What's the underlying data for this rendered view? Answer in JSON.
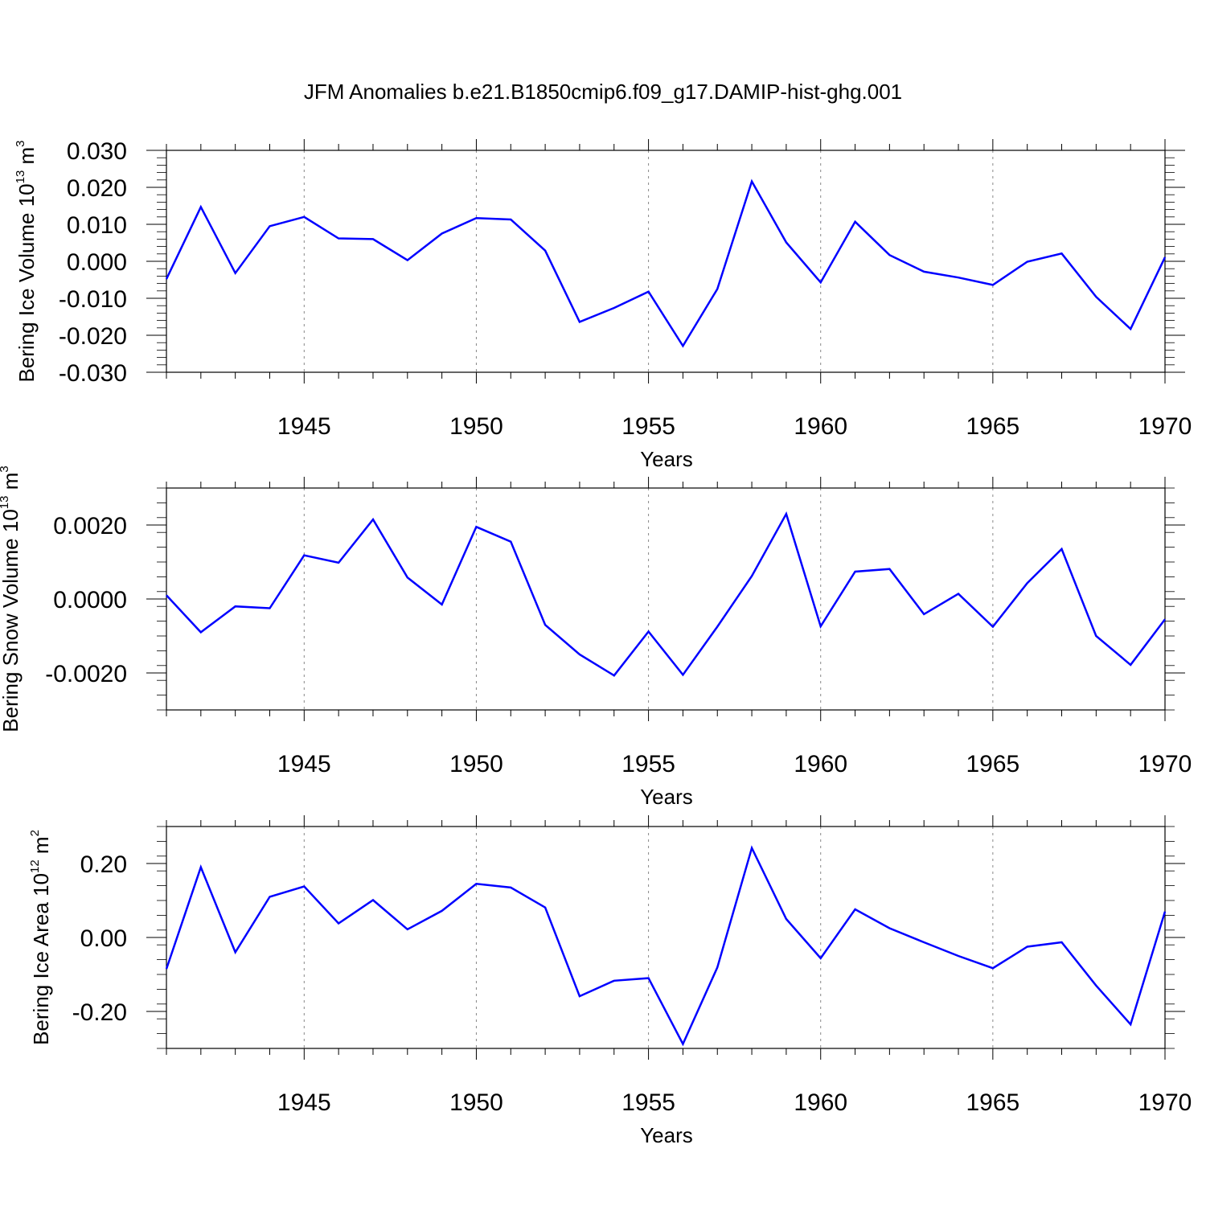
{
  "title": "JFM Anomalies b.e21.B1850cmip6.f09_g17.DAMIP-hist-ghg.001",
  "line_color": "#0000ff",
  "chart_data": [
    {
      "type": "line",
      "ylabel": "Bering Ice Volume 10",
      "ylabel_exp": "13",
      "ylabel_unit": " m",
      "ylabel_unit_exp": "3",
      "xlabel": "Years",
      "xlim": [
        1941,
        1970
      ],
      "ylim": [
        -0.03,
        0.03
      ],
      "xticks": [
        1945,
        1950,
        1955,
        1960,
        1965,
        1970
      ],
      "yticks": [
        -0.03,
        -0.02,
        -0.01,
        0.0,
        0.01,
        0.02,
        0.03
      ],
      "ytick_labels": [
        "-0.030",
        "-0.020",
        "-0.010",
        "0.000",
        "0.010",
        "0.020",
        "0.030"
      ],
      "grid": "vertical-dashed",
      "x": [
        1941,
        1942,
        1943,
        1944,
        1945,
        1946,
        1947,
        1948,
        1949,
        1950,
        1951,
        1952,
        1953,
        1954,
        1955,
        1956,
        1957,
        1958,
        1959,
        1960,
        1961,
        1962,
        1963,
        1964,
        1965,
        1966,
        1967,
        1968,
        1969,
        1970
      ],
      "values": [
        -0.0048,
        0.0147,
        -0.0032,
        0.0095,
        0.012,
        0.0062,
        0.006,
        0.0003,
        0.0075,
        0.0117,
        0.0113,
        0.0029,
        -0.0164,
        -0.0126,
        -0.0082,
        -0.0229,
        -0.0075,
        0.0216,
        0.0051,
        -0.0057,
        0.0107,
        0.0017,
        -0.0028,
        -0.0044,
        -0.0064,
        -0.0001,
        0.0021,
        -0.0096,
        -0.0183,
        0.0011
      ]
    },
    {
      "type": "line",
      "ylabel": "Bering Snow Volume 10",
      "ylabel_exp": "13",
      "ylabel_unit": " m",
      "ylabel_unit_exp": "3",
      "xlabel": "Years",
      "xlim": [
        1941,
        1970
      ],
      "ylim": [
        -0.003,
        0.003
      ],
      "xticks": [
        1945,
        1950,
        1955,
        1960,
        1965,
        1970
      ],
      "yticks": [
        -0.002,
        0.0,
        0.002
      ],
      "ytick_labels": [
        "-0.0020",
        "0.0000",
        "0.0020"
      ],
      "grid": "vertical-dashed",
      "x": [
        1941,
        1942,
        1943,
        1944,
        1945,
        1946,
        1947,
        1948,
        1949,
        1950,
        1951,
        1952,
        1953,
        1954,
        1955,
        1956,
        1957,
        1958,
        1959,
        1960,
        1961,
        1962,
        1963,
        1964,
        1965,
        1966,
        1967,
        1968,
        1969,
        1970
      ],
      "values": [
        0.0001,
        -0.0009,
        -0.0002,
        -0.00025,
        0.00118,
        0.00098,
        0.00215,
        0.00058,
        -0.00015,
        0.00195,
        0.00155,
        -0.0007,
        -0.0015,
        -0.00207,
        -0.00088,
        -0.00205,
        -0.00075,
        0.00062,
        0.0023,
        -0.00074,
        0.00074,
        0.00081,
        -0.00041,
        0.00014,
        -0.00075,
        0.00043,
        0.00135,
        -0.001,
        -0.00178,
        -0.00055
      ]
    },
    {
      "type": "line",
      "ylabel": "Bering Ice Area 10",
      "ylabel_exp": "12",
      "ylabel_unit": " m",
      "ylabel_unit_exp": "2",
      "xlabel": "Years",
      "xlim": [
        1941,
        1970
      ],
      "ylim": [
        -0.3,
        0.3
      ],
      "xticks": [
        1945,
        1950,
        1955,
        1960,
        1965,
        1970
      ],
      "yticks": [
        -0.2,
        0.0,
        0.2
      ],
      "ytick_labels": [
        "-0.20",
        "0.00",
        "0.20"
      ],
      "grid": "vertical-dashed",
      "x": [
        1941,
        1942,
        1943,
        1944,
        1945,
        1946,
        1947,
        1948,
        1949,
        1950,
        1951,
        1952,
        1953,
        1954,
        1955,
        1956,
        1957,
        1958,
        1959,
        1960,
        1961,
        1962,
        1963,
        1964,
        1965,
        1966,
        1967,
        1968,
        1969,
        1970
      ],
      "values": [
        -0.085,
        0.19,
        -0.04,
        0.11,
        0.138,
        0.038,
        0.101,
        0.022,
        0.072,
        0.145,
        0.135,
        0.081,
        -0.159,
        -0.117,
        -0.11,
        -0.288,
        -0.081,
        0.242,
        0.05,
        -0.056,
        0.076,
        0.025,
        -0.013,
        -0.05,
        -0.083,
        -0.025,
        -0.013,
        -0.13,
        -0.235,
        0.07
      ]
    }
  ]
}
